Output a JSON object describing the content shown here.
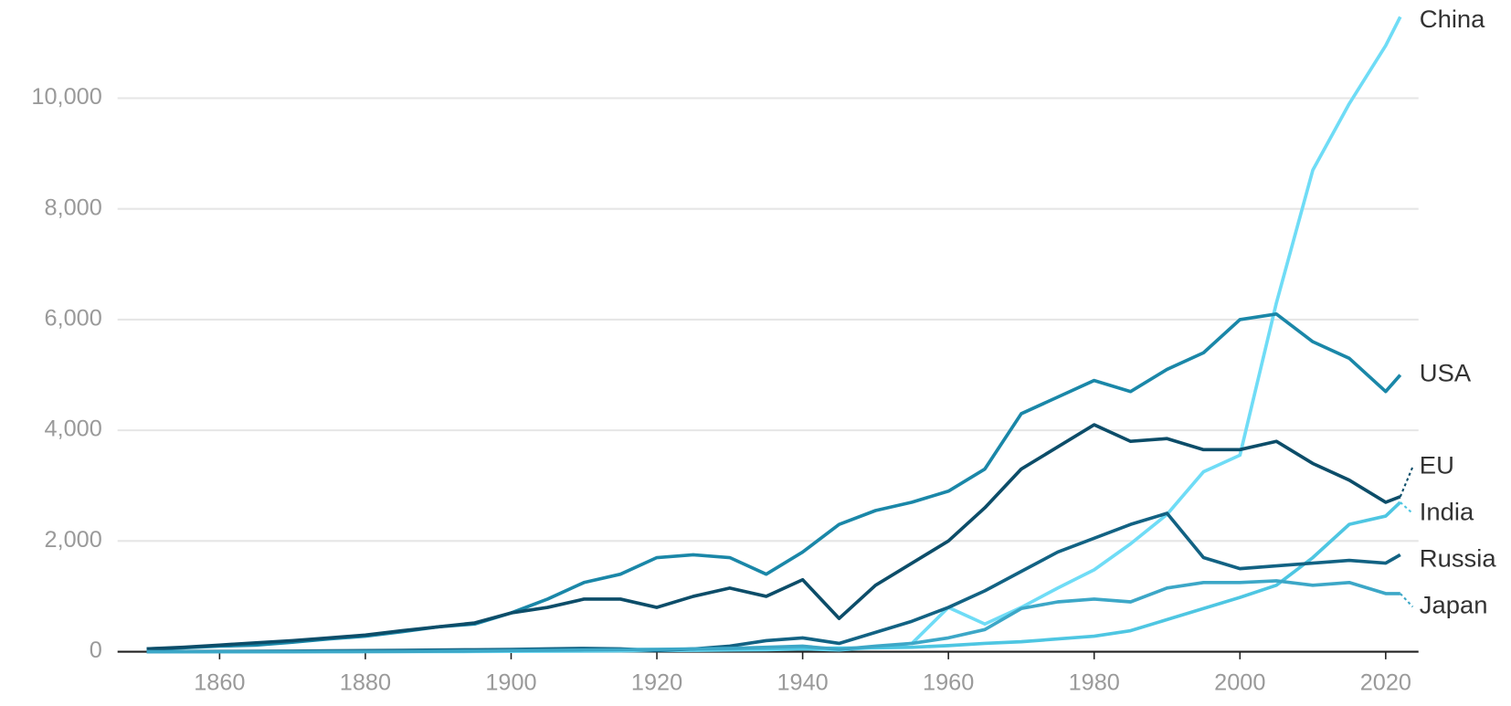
{
  "chart_data": {
    "type": "line",
    "x": [
      1850,
      1855,
      1860,
      1865,
      1870,
      1875,
      1880,
      1885,
      1890,
      1895,
      1900,
      1905,
      1910,
      1915,
      1920,
      1925,
      1930,
      1935,
      1940,
      1945,
      1950,
      1955,
      1960,
      1965,
      1970,
      1975,
      1980,
      1985,
      1990,
      1995,
      2000,
      2005,
      2010,
      2015,
      2020,
      2022
    ],
    "series": [
      {
        "name": "China",
        "color": "#6fdcf6",
        "values": [
          0,
          0,
          0,
          0,
          0,
          0,
          1,
          1,
          2,
          3,
          5,
          8,
          10,
          15,
          20,
          25,
          30,
          35,
          50,
          30,
          79,
          150,
          800,
          500,
          800,
          1150,
          1480,
          1950,
          2480,
          3250,
          3550,
          6300,
          8700,
          9900,
          10950,
          11470
        ]
      },
      {
        "name": "USA",
        "color": "#1a87a8",
        "values": [
          50,
          70,
          100,
          120,
          170,
          230,
          280,
          360,
          450,
          500,
          700,
          950,
          1250,
          1400,
          1700,
          1750,
          1700,
          1400,
          1800,
          2300,
          2550,
          2700,
          2900,
          3300,
          4300,
          4600,
          4900,
          4700,
          5100,
          5400,
          6000,
          6100,
          5600,
          5300,
          4700,
          5000
        ]
      },
      {
        "name": "EU",
        "color": "#0c4d69",
        "values": [
          50,
          80,
          120,
          160,
          200,
          250,
          300,
          380,
          450,
          520,
          700,
          800,
          950,
          950,
          800,
          1000,
          1150,
          1000,
          1300,
          600,
          1200,
          1600,
          2000,
          2600,
          3300,
          3700,
          4100,
          3800,
          3850,
          3650,
          3650,
          3800,
          3400,
          3100,
          2700,
          2800
        ]
      },
      {
        "name": "India",
        "color": "#4ec6e2",
        "values": [
          0,
          1,
          2,
          3,
          5,
          8,
          10,
          15,
          20,
          25,
          30,
          35,
          35,
          40,
          40,
          45,
          50,
          55,
          60,
          65,
          70,
          80,
          110,
          150,
          180,
          230,
          280,
          380,
          580,
          780,
          980,
          1200,
          1700,
          2300,
          2450,
          2700
        ]
      },
      {
        "name": "Russia",
        "color": "#126283",
        "values": [
          2,
          3,
          5,
          8,
          10,
          15,
          20,
          25,
          30,
          35,
          40,
          50,
          60,
          50,
          20,
          50,
          100,
          200,
          250,
          150,
          350,
          550,
          800,
          1100,
          1450,
          1800,
          2050,
          2300,
          2500,
          1700,
          1500,
          1550,
          1600,
          1650,
          1600,
          1750
        ]
      },
      {
        "name": "Japan",
        "color": "#3ca7c7",
        "values": [
          0,
          0,
          0,
          0,
          0,
          1,
          2,
          4,
          8,
          12,
          20,
          25,
          30,
          35,
          40,
          50,
          60,
          80,
          100,
          40,
          100,
          150,
          250,
          400,
          780,
          900,
          950,
          900,
          1150,
          1250,
          1250,
          1280,
          1200,
          1250,
          1050,
          1050
        ]
      }
    ],
    "xlim": [
      1846,
      2024.5
    ],
    "xticks": [
      1860,
      1880,
      1900,
      1920,
      1940,
      1960,
      1980,
      2000,
      2020
    ],
    "ylim": [
      0,
      11500
    ],
    "yticks": [
      0,
      {
        "value": 2000,
        "label": "2,000"
      },
      {
        "value": 4000,
        "label": "4,000"
      },
      {
        "value": 6000,
        "label": "6,000"
      },
      {
        "value": 8000,
        "label": "8,000"
      },
      {
        "value": 10000,
        "label": "10,000"
      }
    ],
    "grid": true
  }
}
